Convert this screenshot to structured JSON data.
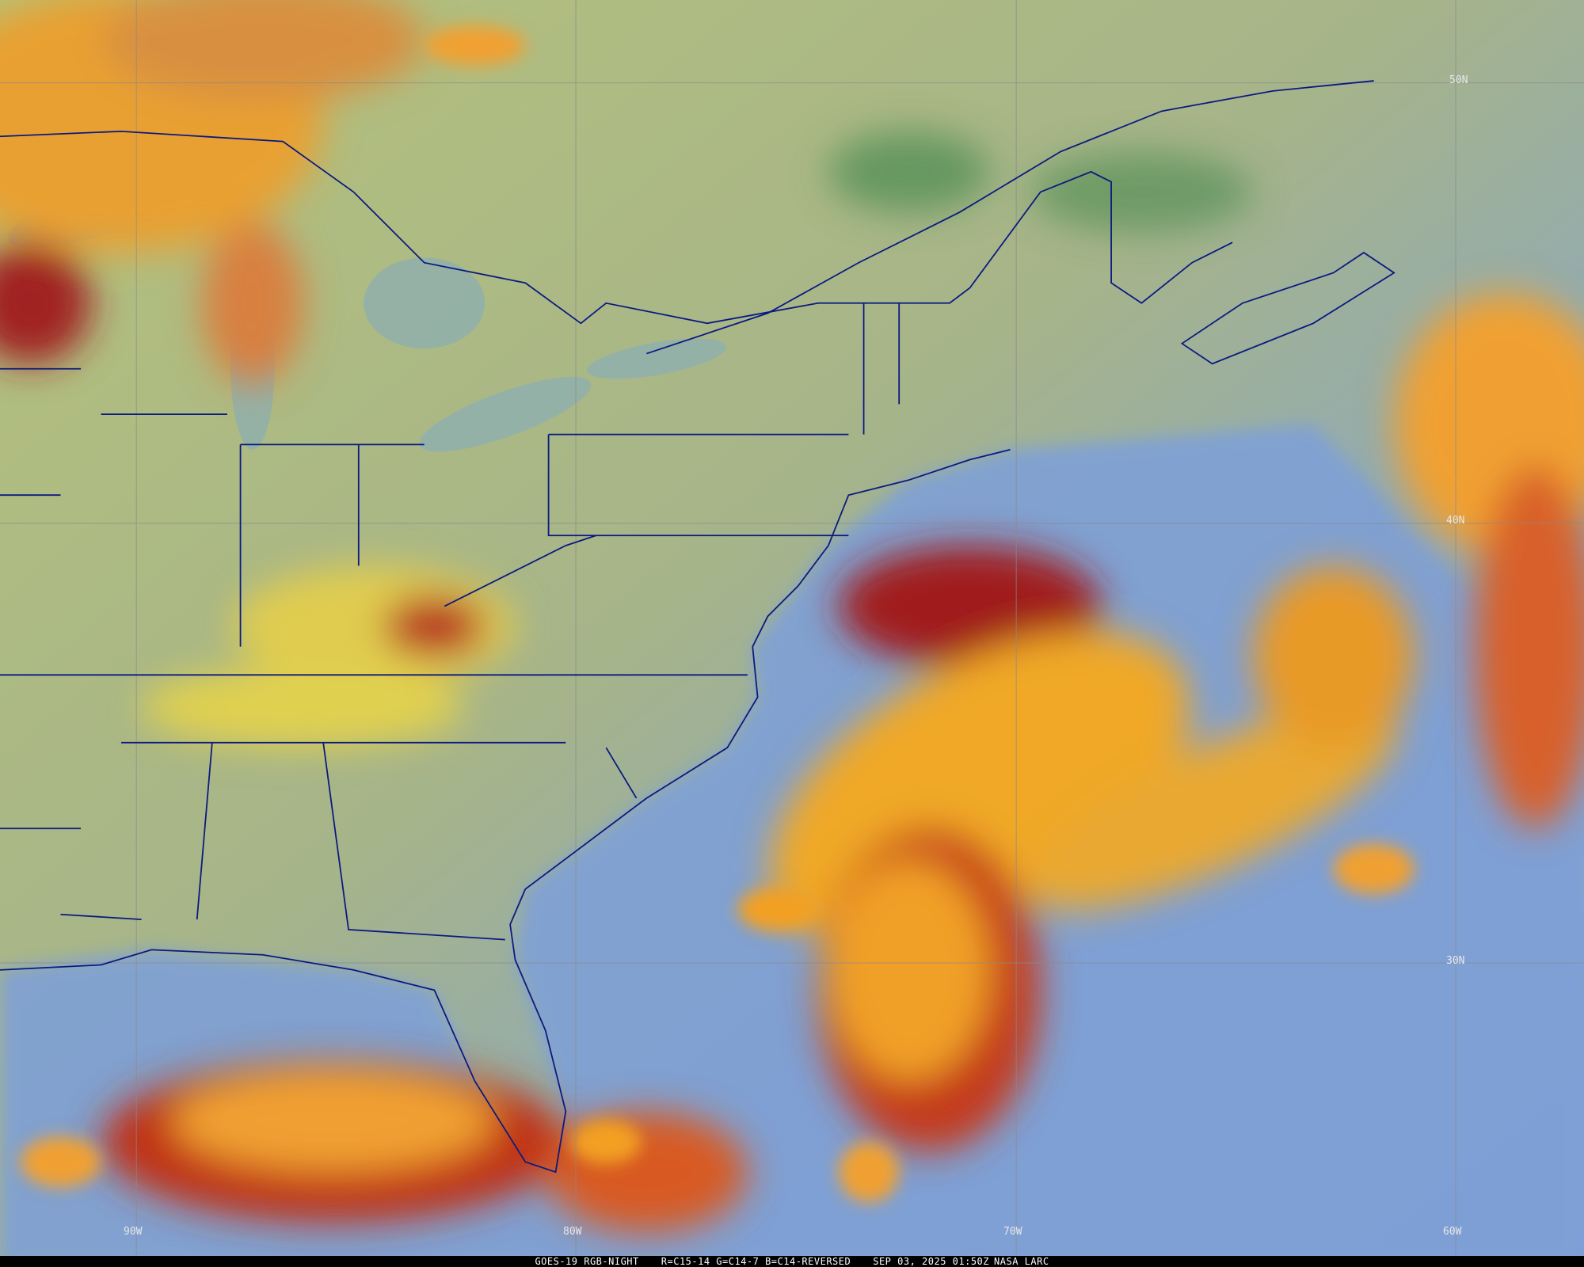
{
  "caption": {
    "satellite": "GOES-19 RGB-NIGHT",
    "channels": "R=C15-14 G=C14-7 B=C14-REVERSED",
    "datetime": "SEP 03, 2025 01:50Z",
    "source": "NASA LARC"
  },
  "grid_labels": {
    "lat": [
      "50N",
      "40N",
      "30N"
    ],
    "lon": [
      "90W",
      "80W",
      "70W",
      "60W"
    ]
  },
  "colors": {
    "ocean": "#7d9fd6",
    "land": "#a9b47e",
    "cloud_high": "#f2a91f",
    "cloud_edge": "#9a1a1a",
    "cloud_low": "#e0d24a",
    "boundaries": "#0a1a80",
    "grid": "#8a8a8a"
  }
}
